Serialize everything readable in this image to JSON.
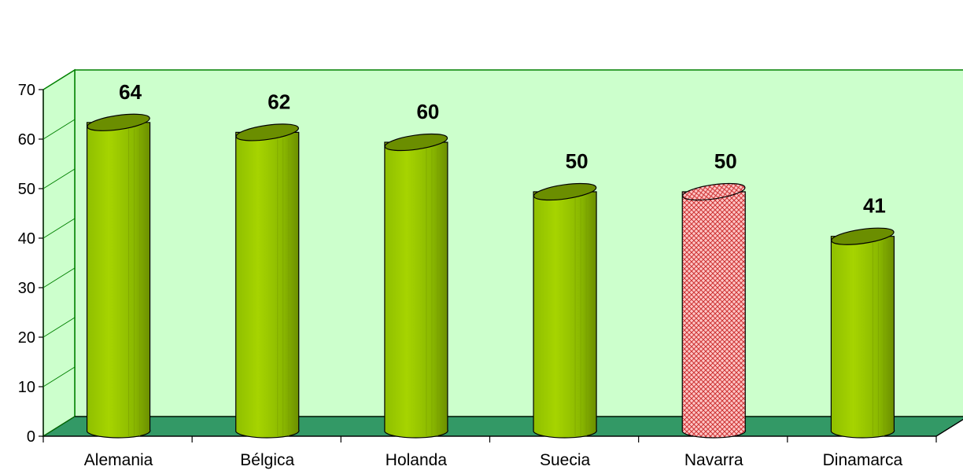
{
  "chart_data": {
    "type": "bar",
    "title": "",
    "xlabel": "",
    "ylabel": "",
    "categories": [
      "Alemania",
      "Bélgica",
      "Holanda",
      "Suecia",
      "Navarra",
      "Dinamarca"
    ],
    "values": [
      64,
      62,
      60,
      50,
      50,
      41
    ],
    "data_labels": [
      "64",
      "62",
      "60",
      "50",
      "50",
      "41"
    ],
    "yticks": [
      "0",
      "10",
      "20",
      "30",
      "40",
      "50",
      "60",
      "70"
    ],
    "ylim": [
      0,
      70
    ],
    "style": "3d-cylinder",
    "grid": false,
    "legend": "none",
    "highlight_category": "Navarra",
    "colors": {
      "bar": "#99cc00",
      "bar_dark": "#6b8e00",
      "highlight": "#ff9999",
      "highlight_pattern": "#cc3333",
      "wall": "#ccffcc",
      "floor": "#339966",
      "wall_border": "#008000"
    }
  }
}
